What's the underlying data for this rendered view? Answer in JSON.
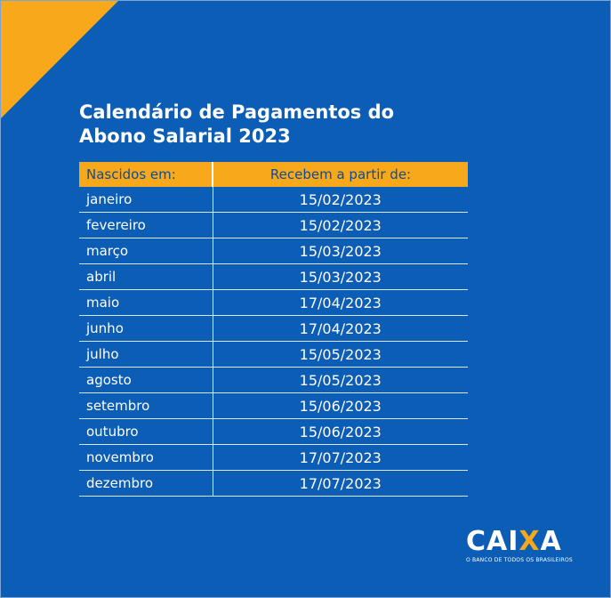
{
  "title": {
    "line1": "Calendário de Pagamentos do",
    "line2": "Abono Salarial 2023"
  },
  "table": {
    "headers": [
      "Nascidos em:",
      "Recebem a partir de:"
    ],
    "rows": [
      {
        "month": "janeiro",
        "date": "15/02/2023"
      },
      {
        "month": "fevereiro",
        "date": "15/02/2023"
      },
      {
        "month": "março",
        "date": "15/03/2023"
      },
      {
        "month": "abril",
        "date": "15/03/2023"
      },
      {
        "month": "maio",
        "date": "17/04/2023"
      },
      {
        "month": "junho",
        "date": "17/04/2023"
      },
      {
        "month": "julho",
        "date": "15/05/2023"
      },
      {
        "month": "agosto",
        "date": "15/05/2023"
      },
      {
        "month": "setembro",
        "date": "15/06/2023"
      },
      {
        "month": "outubro",
        "date": "15/06/2023"
      },
      {
        "month": "novembro",
        "date": "17/07/2023"
      },
      {
        "month": "dezembro",
        "date": "17/07/2023"
      }
    ]
  },
  "logo": {
    "word_part1": "CAI",
    "word_part2": "X",
    "word_part3": "A",
    "tagline": "O BANCO DE TODOS OS BRASILEIROS"
  },
  "colors": {
    "background": "#0b5db5",
    "accent": "#f7a81b",
    "text": "#ffffff"
  }
}
